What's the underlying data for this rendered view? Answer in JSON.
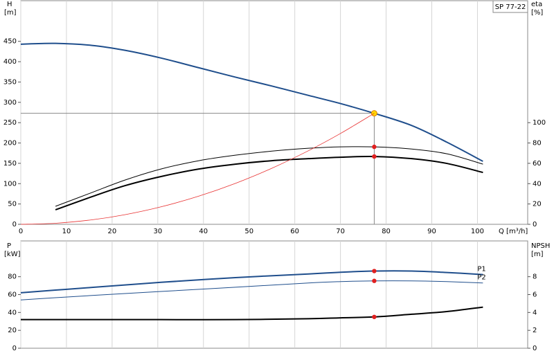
{
  "chart_data": [
    {
      "type": "line",
      "title": "SP 77-22",
      "ylabel": "H",
      "yunit": "[m]",
      "y2label": "eta",
      "y2unit": "[%]",
      "xlabel": "Q [m³/h]",
      "xlim": [
        0,
        111
      ],
      "xticks": [
        0,
        10,
        20,
        30,
        40,
        50,
        60,
        70,
        80,
        90,
        100
      ],
      "ylim": [
        0,
        550
      ],
      "yticks": [
        0,
        50,
        100,
        150,
        200,
        250,
        300,
        350,
        400,
        450
      ],
      "y2lim": [
        0,
        220
      ],
      "y2ticks": [
        0,
        20,
        40,
        60,
        80,
        100
      ],
      "grid": true,
      "x": [
        0,
        7.6,
        15.6,
        22.8,
        30.7,
        39,
        47,
        55,
        63,
        70,
        77.4,
        85.6,
        93.3,
        101.2
      ],
      "series": [
        {
          "color": "#1f4e8c",
          "line_width": 2,
          "marker_index": 10,
          "marker_color": "#ffd700",
          "guide": true,
          "values": [
            443,
            445,
            440,
            428,
            409,
            385,
            362,
            340,
            317,
            297,
            273,
            243,
            202,
            155
          ]
        },
        {
          "color": "#000000",
          "line_width": 1,
          "axis": "y2",
          "marker_index": 10,
          "marker_color": "#e02020",
          "values": [
            null,
            17.7,
            31.3,
            43.5,
            54.4,
            62.6,
            68,
            72,
            74.8,
            76.2,
            76.2,
            74.1,
            69.4,
            59.2
          ]
        },
        {
          "color": "#000000",
          "line_width": 2,
          "axis": "y2",
          "marker_index": 10,
          "marker_color": "#e02020",
          "values": [
            null,
            14.3,
            27.2,
            38,
            47,
            54.4,
            59.2,
            62.6,
            64.6,
            66,
            66.7,
            64.6,
            59.9,
            51
          ]
        },
        {
          "color": "#e83030",
          "line_width": 0.8,
          "values": [
            0,
            2.6,
            11.1,
            23.7,
            43,
            69.4,
            100.7,
            138,
            181,
            223.4,
            273,
            null,
            null,
            null
          ]
        }
      ]
    },
    {
      "type": "line",
      "ylabel": "P",
      "yunit": "[kW]",
      "y2label": "NPSH",
      "y2unit": "[m]",
      "xlim": [
        0,
        111
      ],
      "ylim": [
        0,
        120
      ],
      "yticks": [
        0,
        20,
        40,
        60,
        80
      ],
      "y2lim": [
        0,
        12
      ],
      "y2ticks": [
        0,
        2,
        4,
        6,
        8
      ],
      "x": [
        0,
        7.6,
        15.6,
        30.7,
        47,
        63,
        70,
        77.4,
        85.6,
        93.3,
        101.2
      ],
      "series": [
        {
          "name": "P1",
          "color": "#1f4e8c",
          "line_width": 2,
          "marker_index": 7,
          "marker_color": "#e02020",
          "values": [
            62,
            65,
            68,
            73.7,
            79,
            83,
            85,
            86.3,
            86.3,
            84.7,
            82.4
          ]
        },
        {
          "name": "P2",
          "color": "#1f4e8c",
          "line_width": 1,
          "marker_index": 7,
          "marker_color": "#e02020",
          "values": [
            54,
            56.5,
            59,
            63.5,
            68.2,
            73,
            74.5,
            75.3,
            75.3,
            74.5,
            73
          ]
        },
        {
          "color": "#000000",
          "line_width": 2,
          "axis": "y2",
          "marker_index": 7,
          "marker_color": "#e02020",
          "values": [
            3.2,
            3.2,
            3.2,
            3.2,
            3.2,
            3.3,
            3.4,
            3.5,
            3.8,
            4.1,
            4.6
          ]
        }
      ]
    }
  ]
}
